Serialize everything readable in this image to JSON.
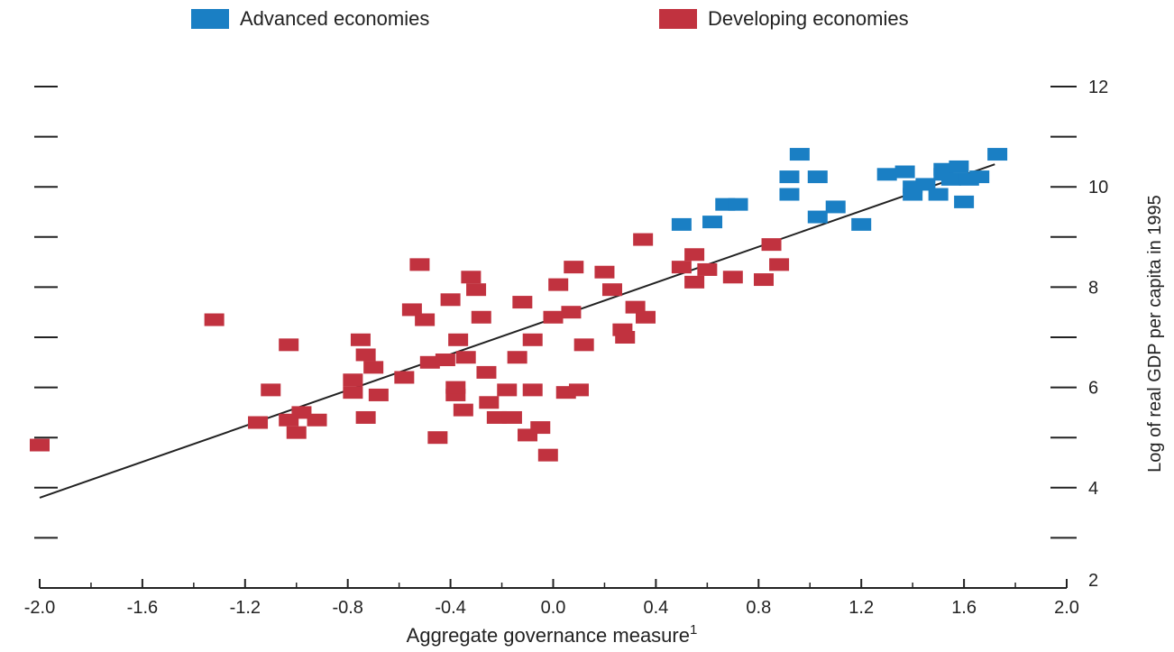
{
  "chart_data": {
    "type": "scatter",
    "title": "",
    "xlabel": "Aggregate governance measure",
    "xlabel_superscript": "1",
    "ylabel": "Log of real GDP per capita in 1995",
    "xlim": [
      -2.0,
      2.0
    ],
    "ylim": [
      2,
      12
    ],
    "x_ticks": [
      -2.0,
      -1.6,
      -1.2,
      -0.8,
      -0.4,
      0.0,
      0.4,
      0.8,
      1.2,
      1.6,
      2.0
    ],
    "x_tick_labels": [
      "-2.0",
      "-1.6",
      "-1.2",
      "-0.8",
      "-0.4",
      "0.0",
      "0.4",
      "0.8",
      "1.2",
      "1.6",
      "2.0"
    ],
    "y_ticks": [
      2,
      3,
      4,
      5,
      6,
      7,
      8,
      9,
      10,
      11,
      12
    ],
    "y_tick_labels": [
      "2",
      "",
      "4",
      "",
      "6",
      "",
      "8",
      "",
      "10",
      "",
      "12"
    ],
    "y_axis_side": "right",
    "grid": false,
    "legend_position": "top",
    "colors": {
      "advanced": "#1a7fc4",
      "developing": "#c1323f",
      "trend": "#222222"
    },
    "trend_line": {
      "x": [
        -2.0,
        1.72
      ],
      "y": [
        3.8,
        10.45
      ]
    },
    "series": [
      {
        "name": "Advanced economies",
        "points": [
          [
            0.5,
            9.25
          ],
          [
            0.62,
            9.3
          ],
          [
            0.67,
            9.65
          ],
          [
            0.72,
            9.65
          ],
          [
            0.92,
            9.85
          ],
          [
            0.92,
            10.2
          ],
          [
            0.96,
            10.65
          ],
          [
            1.03,
            10.2
          ],
          [
            1.03,
            9.4
          ],
          [
            1.1,
            9.6
          ],
          [
            1.2,
            9.25
          ],
          [
            1.3,
            10.25
          ],
          [
            1.37,
            10.3
          ],
          [
            1.4,
            10.0
          ],
          [
            1.4,
            9.85
          ],
          [
            1.45,
            10.05
          ],
          [
            1.5,
            9.85
          ],
          [
            1.52,
            10.35
          ],
          [
            1.52,
            10.25
          ],
          [
            1.55,
            10.15
          ],
          [
            1.58,
            10.4
          ],
          [
            1.6,
            9.7
          ],
          [
            1.62,
            10.15
          ],
          [
            1.66,
            10.2
          ],
          [
            1.73,
            10.65
          ]
        ]
      },
      {
        "name": "Developing economies",
        "points": [
          [
            -2.0,
            4.85
          ],
          [
            -1.32,
            7.35
          ],
          [
            -1.15,
            5.3
          ],
          [
            -1.1,
            5.95
          ],
          [
            -1.03,
            6.85
          ],
          [
            -1.03,
            5.35
          ],
          [
            -1.0,
            5.1
          ],
          [
            -0.98,
            5.5
          ],
          [
            -0.92,
            5.35
          ],
          [
            -0.78,
            6.15
          ],
          [
            -0.78,
            5.9
          ],
          [
            -0.75,
            6.95
          ],
          [
            -0.73,
            6.65
          ],
          [
            -0.73,
            5.4
          ],
          [
            -0.7,
            6.4
          ],
          [
            -0.68,
            5.85
          ],
          [
            -0.58,
            6.2
          ],
          [
            -0.55,
            7.55
          ],
          [
            -0.52,
            8.45
          ],
          [
            -0.5,
            7.35
          ],
          [
            -0.48,
            6.5
          ],
          [
            -0.45,
            5.0
          ],
          [
            -0.42,
            6.55
          ],
          [
            -0.4,
            7.75
          ],
          [
            -0.38,
            5.85
          ],
          [
            -0.38,
            6.0
          ],
          [
            -0.37,
            6.95
          ],
          [
            -0.35,
            5.55
          ],
          [
            -0.34,
            6.6
          ],
          [
            -0.32,
            8.2
          ],
          [
            -0.3,
            7.95
          ],
          [
            -0.28,
            7.4
          ],
          [
            -0.26,
            6.3
          ],
          [
            -0.25,
            5.7
          ],
          [
            -0.22,
            5.4
          ],
          [
            -0.18,
            5.95
          ],
          [
            -0.16,
            5.4
          ],
          [
            -0.14,
            6.6
          ],
          [
            -0.12,
            7.7
          ],
          [
            -0.1,
            5.05
          ],
          [
            -0.08,
            6.95
          ],
          [
            -0.08,
            5.95
          ],
          [
            -0.05,
            5.2
          ],
          [
            -0.02,
            4.65
          ],
          [
            0.0,
            7.4
          ],
          [
            0.02,
            8.05
          ],
          [
            0.05,
            5.9
          ],
          [
            0.07,
            7.5
          ],
          [
            0.08,
            8.4
          ],
          [
            0.1,
            5.95
          ],
          [
            0.12,
            6.85
          ],
          [
            0.2,
            8.3
          ],
          [
            0.23,
            7.95
          ],
          [
            0.27,
            7.15
          ],
          [
            0.28,
            7.0
          ],
          [
            0.32,
            7.6
          ],
          [
            0.35,
            8.95
          ],
          [
            0.36,
            7.4
          ],
          [
            0.5,
            8.4
          ],
          [
            0.55,
            8.65
          ],
          [
            0.55,
            8.1
          ],
          [
            0.6,
            8.35
          ],
          [
            0.7,
            8.2
          ],
          [
            0.82,
            8.15
          ],
          [
            0.85,
            8.85
          ],
          [
            0.88,
            8.45
          ]
        ]
      }
    ]
  }
}
